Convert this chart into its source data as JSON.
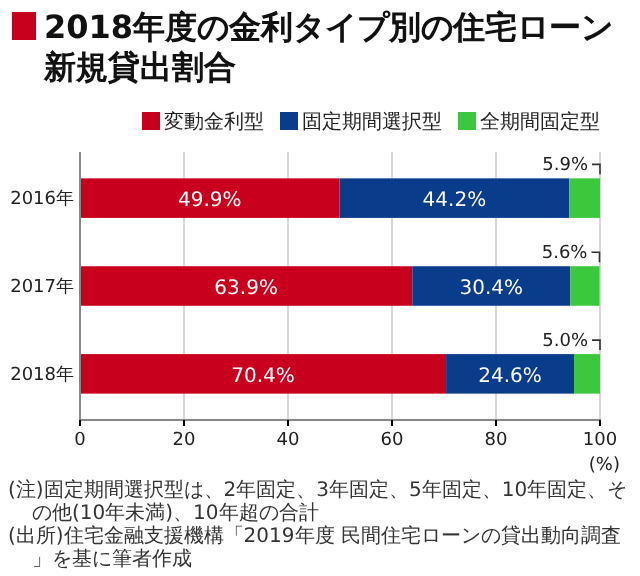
{
  "chart_data": {
    "type": "bar",
    "orientation": "horizontal",
    "stacked": true,
    "title": "2018年度の金利タイプ別の住宅ローン新規貸出割合",
    "categories": [
      "2016年",
      "2017年",
      "2018年"
    ],
    "series": [
      {
        "name": "変動金利型",
        "color": "#c8001e",
        "values": [
          49.9,
          63.9,
          70.4
        ],
        "value_labels": [
          "49.9%",
          "63.9%",
          "70.4%"
        ]
      },
      {
        "name": "固定期間選択型",
        "color": "#0a3c8c",
        "values": [
          44.2,
          30.4,
          24.6
        ],
        "value_labels": [
          "44.2%",
          "30.4%",
          "24.6%"
        ]
      },
      {
        "name": "全期間固定型",
        "color": "#3cc83c",
        "values": [
          5.9,
          5.6,
          5.0
        ],
        "value_labels": [
          "5.9%",
          "5.6%",
          "5.0%"
        ]
      }
    ],
    "xlim": [
      0,
      100
    ],
    "xticks": [
      0,
      20,
      40,
      60,
      80,
      100
    ],
    "xlabel": "(%)",
    "grid": "x",
    "legend": "top",
    "annotations": [
      "(注)固定期間選択型は、2年固定、3年固定、5年固定、10年固定、その他(10年未満)、10年超の合計",
      "(出所)住宅金融支援機構「2019年度 民間住宅ローンの貸出動向調査」を基に筆者作成"
    ]
  }
}
